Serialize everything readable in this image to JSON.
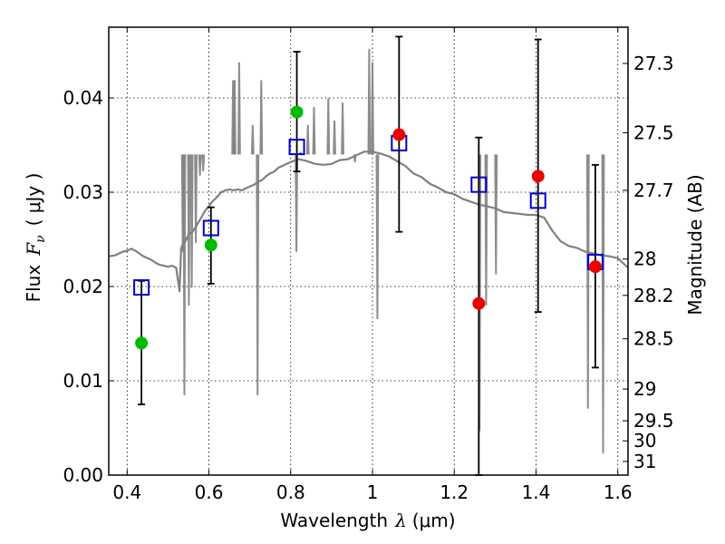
{
  "chart_data": {
    "type": "scatter",
    "title": "",
    "xlabel": "Wavelength",
    "xlabel_symbol": "λ",
    "xlabel_unit": "(μm)",
    "ylabel": "Flux",
    "ylabel_symbol": "F_ν",
    "ylabel_unit": "( μJy )",
    "ylabel_right": "Magnitude (AB)",
    "xlim": [
      0.355,
      1.625
    ],
    "ylim": [
      0.0,
      0.0475
    ],
    "grid": true,
    "x_ticks": [
      {
        "value": 0.4,
        "label": "0.4"
      },
      {
        "value": 0.6,
        "label": "0.6"
      },
      {
        "value": 0.8,
        "label": "0.8"
      },
      {
        "value": 1.0,
        "label": "1"
      },
      {
        "value": 1.2,
        "label": "1.2"
      },
      {
        "value": 1.4,
        "label": "1.4"
      },
      {
        "value": 1.6,
        "label": "1.6"
      }
    ],
    "y_ticks": [
      {
        "value": 0.0,
        "label": "0.00"
      },
      {
        "value": 0.01,
        "label": "0.01"
      },
      {
        "value": 0.02,
        "label": "0.02"
      },
      {
        "value": 0.03,
        "label": "0.03"
      },
      {
        "value": 0.04,
        "label": "0.04"
      }
    ],
    "right_ticks": [
      {
        "mag": 27.3,
        "label": "27.3"
      },
      {
        "mag": 27.5,
        "label": "27.5"
      },
      {
        "mag": 27.7,
        "label": "27.7"
      },
      {
        "mag": 28.0,
        "label": "28"
      },
      {
        "mag": 28.2,
        "label": "28.2"
      },
      {
        "mag": 28.5,
        "label": "28.5"
      },
      {
        "mag": 29.0,
        "label": "29"
      },
      {
        "mag": 29.5,
        "label": "29.5"
      },
      {
        "mag": 30.0,
        "label": "30"
      },
      {
        "mag": 31.0,
        "label": "31"
      }
    ],
    "series": [
      {
        "name": "model-spectrum",
        "kind": "line",
        "color": "#808080",
        "x": [
          0.355,
          0.37,
          0.39,
          0.4,
          0.41,
          0.42,
          0.43,
          0.44,
          0.45,
          0.46,
          0.47,
          0.48,
          0.49,
          0.5,
          0.51,
          0.52,
          0.528,
          0.532,
          0.536,
          0.54,
          0.545,
          0.55,
          0.56,
          0.57,
          0.58,
          0.59,
          0.6,
          0.61,
          0.62,
          0.63,
          0.64,
          0.65,
          0.66,
          0.67,
          0.68,
          0.69,
          0.7,
          0.71,
          0.72,
          0.73,
          0.74,
          0.75,
          0.76,
          0.77,
          0.78,
          0.79,
          0.8,
          0.82,
          0.84,
          0.86,
          0.88,
          0.9,
          0.92,
          0.94,
          0.96,
          0.98,
          1.0,
          1.02,
          1.04,
          1.06,
          1.08,
          1.1,
          1.12,
          1.14,
          1.16,
          1.18,
          1.2,
          1.22,
          1.24,
          1.26,
          1.28,
          1.3,
          1.32,
          1.34,
          1.36,
          1.38,
          1.4,
          1.42,
          1.44,
          1.46,
          1.48,
          1.5,
          1.52,
          1.54,
          1.56,
          1.58,
          1.6,
          1.625
        ],
        "y": [
          0.0232,
          0.0233,
          0.0237,
          0.0238,
          0.024,
          0.0238,
          0.0235,
          0.0232,
          0.023,
          0.0228,
          0.0225,
          0.0223,
          0.0222,
          0.0221,
          0.0222,
          0.022,
          0.0195,
          0.024,
          0.0245,
          0.0246,
          0.025,
          0.0255,
          0.0258,
          0.0265,
          0.0272,
          0.028,
          0.0285,
          0.0291,
          0.0295,
          0.03,
          0.0302,
          0.0303,
          0.0302,
          0.0303,
          0.0302,
          0.0304,
          0.0306,
          0.0308,
          0.0311,
          0.0313,
          0.0317,
          0.032,
          0.0322,
          0.0326,
          0.0328,
          0.033,
          0.0332,
          0.0335,
          0.0333,
          0.033,
          0.0329,
          0.033,
          0.0334,
          0.0335,
          0.0339,
          0.0343,
          0.0343,
          0.0341,
          0.0338,
          0.0333,
          0.0328,
          0.032,
          0.0316,
          0.0309,
          0.0305,
          0.03,
          0.0298,
          0.0293,
          0.029,
          0.0287,
          0.0285,
          0.0283,
          0.0279,
          0.0278,
          0.0277,
          0.0276,
          0.0276,
          0.0273,
          0.0259,
          0.0248,
          0.0243,
          0.0241,
          0.0237,
          0.0235,
          0.0233,
          0.0232,
          0.023,
          0.022
        ]
      },
      {
        "name": "model-photometry",
        "kind": "open-square",
        "color": "#0000cc",
        "x": [
          0.435,
          0.605,
          0.815,
          1.065,
          1.26,
          1.405,
          1.545
        ],
        "y": [
          0.0199,
          0.0262,
          0.0348,
          0.0352,
          0.0308,
          0.0291,
          0.0226
        ]
      },
      {
        "name": "hst-photometry",
        "kind": "filled-circle",
        "color": "#00bb00",
        "x": [
          0.435,
          0.605,
          0.815
        ],
        "y": [
          0.014,
          0.0244,
          0.0385
        ],
        "yerr_low": [
          0.0065,
          0.0041,
          0.0063
        ],
        "yerr_high": [
          0.0066,
          0.004,
          0.0064
        ]
      },
      {
        "name": "ir-photometry",
        "kind": "filled-circle",
        "color": "#ee0000",
        "x": [
          1.065,
          1.26,
          1.405,
          1.545
        ],
        "y": [
          0.0361,
          0.0182,
          0.0317,
          0.0221
        ],
        "yerr_low": [
          0.0103,
          0.0182,
          0.0144,
          0.0107
        ],
        "yerr_high": [
          0.0104,
          0.0176,
          0.0145,
          0.0108
        ]
      }
    ]
  }
}
